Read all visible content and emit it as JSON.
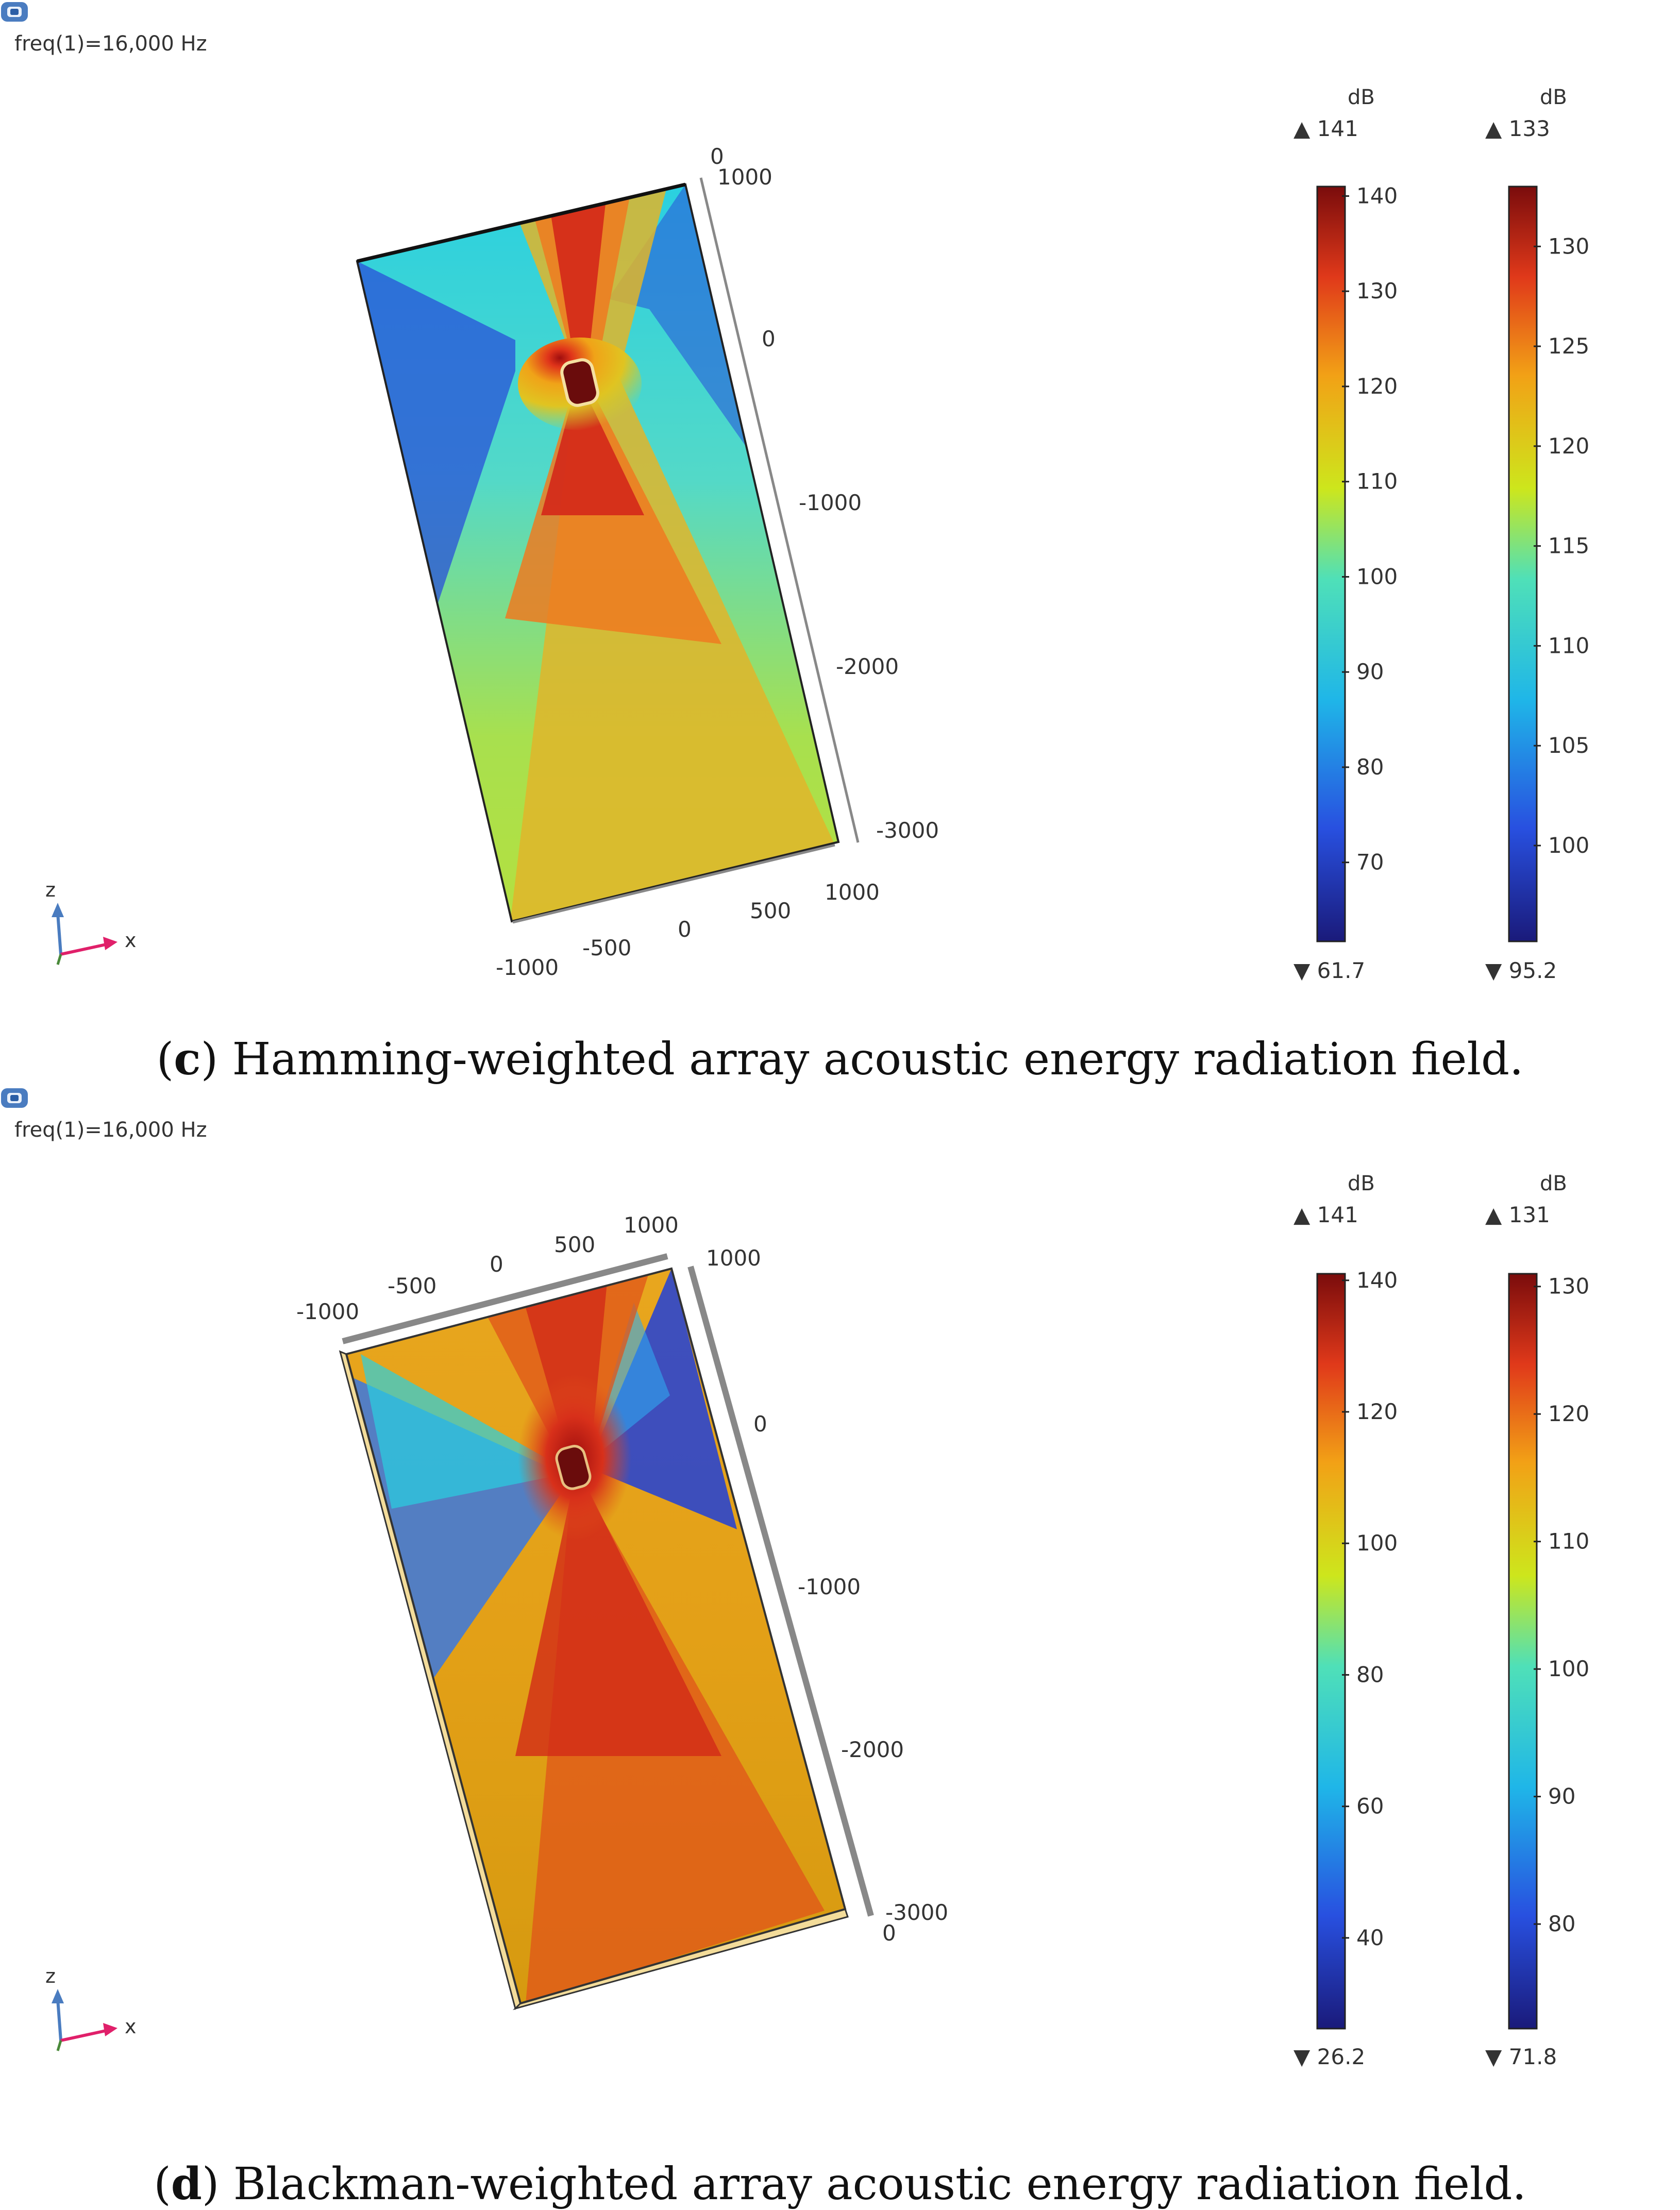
{
  "figure": {
    "panels": [
      {
        "id": "c",
        "freq_label": "freq(1)=16,000 Hz",
        "caption_letter": "c",
        "caption_text": " Hamming-weighted array acoustic energy radiation field.",
        "axis_ticks_side": [
          "0",
          "1000",
          "0",
          "-1000",
          "-2000",
          "-3000"
        ],
        "axis_ticks_bottom": [
          "-1000",
          "-500",
          "0",
          "500",
          "1000"
        ],
        "triad": {
          "z": "z",
          "x": "x",
          "y": "y"
        },
        "colorbars": [
          {
            "unit": "dB",
            "max_label": "▲ 141",
            "min_label": "▼ 61.7",
            "min": 61.7,
            "max": 141,
            "ticks": [
              140,
              130,
              120,
              110,
              100,
              90,
              80,
              70
            ]
          },
          {
            "unit": "dB",
            "max_label": "▲ 133",
            "min_label": "▼ 95.2",
            "min": 95.2,
            "max": 133,
            "ticks": [
              130,
              125,
              120,
              115,
              110,
              105,
              100
            ]
          }
        ]
      },
      {
        "id": "d",
        "freq_label": "freq(1)=16,000 Hz",
        "caption_letter": "d",
        "caption_text": " Blackman-weighted array acoustic energy radiation field.",
        "axis_ticks_top": [
          "-1000",
          "-500",
          "0",
          "500",
          "1000"
        ],
        "axis_ticks_side": [
          "1000",
          "0",
          "-1000",
          "-2000",
          "-3000",
          "0"
        ],
        "triad": {
          "z": "z",
          "x": "x",
          "y": "y"
        },
        "colorbars": [
          {
            "unit": "dB",
            "max_label": "▲ 141",
            "min_label": "▼ 26.2",
            "min": 26.2,
            "max": 141,
            "ticks": [
              140,
              120,
              100,
              80,
              60,
              40
            ]
          },
          {
            "unit": "dB",
            "max_label": "▲ 131",
            "min_label": "▼ 71.8",
            "min": 71.8,
            "max": 131,
            "ticks": [
              130,
              120,
              110,
              100,
              90,
              80
            ]
          }
        ]
      }
    ]
  },
  "colors": {
    "jet": [
      "#00007f",
      "#0050ff",
      "#00d4ff",
      "#7dff7a",
      "#ffe600",
      "#ff4a00",
      "#7f0000"
    ]
  },
  "icons": {
    "corner": "comsol-logo-icon"
  }
}
